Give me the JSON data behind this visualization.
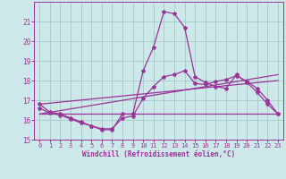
{
  "xlabel": "Windchill (Refroidissement éolien,°C)",
  "background_color": "#cce8e8",
  "grid_color": "#aacccc",
  "line_color": "#993399",
  "xlim": [
    -0.5,
    23.5
  ],
  "ylim": [
    15.0,
    22.0
  ],
  "yticks": [
    15,
    16,
    17,
    18,
    19,
    20,
    21
  ],
  "xticks": [
    0,
    1,
    2,
    3,
    4,
    5,
    6,
    7,
    8,
    9,
    10,
    11,
    12,
    13,
    14,
    15,
    16,
    17,
    18,
    19,
    20,
    21,
    22,
    23
  ],
  "curve1_x": [
    0,
    1,
    2,
    3,
    4,
    5,
    6,
    7,
    8,
    9,
    10,
    11,
    12,
    13,
    14,
    15,
    16,
    17,
    18,
    19,
    20,
    21,
    22,
    23
  ],
  "curve1_y": [
    16.8,
    16.4,
    16.3,
    16.1,
    15.9,
    15.7,
    15.5,
    15.5,
    16.3,
    16.3,
    18.5,
    19.7,
    21.5,
    21.4,
    20.7,
    18.2,
    17.9,
    17.7,
    17.6,
    18.3,
    17.9,
    17.4,
    16.8,
    16.3
  ],
  "curve2_x": [
    0,
    1,
    2,
    3,
    4,
    5,
    6,
    7,
    8,
    9,
    10,
    11,
    12,
    13,
    14,
    15,
    16,
    17,
    18,
    19,
    20,
    21,
    22,
    23
  ],
  "curve2_y": [
    16.6,
    16.35,
    16.25,
    16.05,
    15.85,
    15.7,
    15.55,
    15.55,
    16.1,
    16.2,
    17.1,
    17.7,
    18.2,
    18.3,
    18.5,
    17.85,
    17.8,
    17.95,
    18.05,
    18.25,
    17.95,
    17.6,
    17.0,
    16.3
  ],
  "curve3_x": [
    0,
    23
  ],
  "curve3_y": [
    16.3,
    16.3
  ],
  "curve4_x": [
    0,
    23
  ],
  "curve4_y": [
    16.3,
    18.3
  ],
  "curve5_x": [
    0,
    23
  ],
  "curve5_y": [
    16.8,
    18.0
  ]
}
